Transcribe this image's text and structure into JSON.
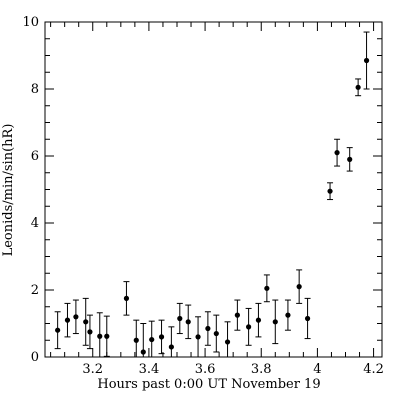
{
  "chart_data": {
    "type": "scatter",
    "title": "",
    "xlabel": "Hours past 0:00 UT November 19",
    "ylabel": "Leonids/min/sin(hR)",
    "xlim": [
      3.03,
      4.23
    ],
    "ylim": [
      0,
      10
    ],
    "grid": false,
    "error_bars": true,
    "x_ticks": [
      3.2,
      3.4,
      3.6,
      3.8,
      4.0,
      4.2
    ],
    "x_tick_labels": [
      "3.2",
      "3.4",
      "3.6",
      "3.8",
      "4",
      "4.2"
    ],
    "y_ticks": [
      0,
      2,
      4,
      6,
      8,
      10
    ],
    "y_tick_labels": [
      "0",
      "2",
      "4",
      "6",
      "8",
      "10"
    ],
    "points": [
      {
        "x": 3.075,
        "y": 0.8,
        "err": 0.55
      },
      {
        "x": 3.11,
        "y": 1.1,
        "err": 0.5
      },
      {
        "x": 3.14,
        "y": 1.2,
        "err": 0.5
      },
      {
        "x": 3.175,
        "y": 1.05,
        "err": 0.7
      },
      {
        "x": 3.19,
        "y": 0.75,
        "err": 0.5
      },
      {
        "x": 3.225,
        "y": 0.62,
        "err": 0.7
      },
      {
        "x": 3.25,
        "y": 0.62,
        "err": 0.6
      },
      {
        "x": 3.32,
        "y": 1.75,
        "err": 0.5
      },
      {
        "x": 3.355,
        "y": 0.5,
        "err": 0.6
      },
      {
        "x": 3.38,
        "y": 0.15,
        "err": 0.85
      },
      {
        "x": 3.41,
        "y": 0.52,
        "err": 0.55
      },
      {
        "x": 3.445,
        "y": 0.6,
        "err": 0.5
      },
      {
        "x": 3.48,
        "y": 0.3,
        "err": 0.6
      },
      {
        "x": 3.51,
        "y": 1.15,
        "err": 0.45
      },
      {
        "x": 3.54,
        "y": 1.05,
        "err": 0.5
      },
      {
        "x": 3.575,
        "y": 0.6,
        "err": 0.6
      },
      {
        "x": 3.61,
        "y": 0.85,
        "err": 0.5
      },
      {
        "x": 3.64,
        "y": 0.7,
        "err": 0.55
      },
      {
        "x": 3.68,
        "y": 0.45,
        "err": 0.6
      },
      {
        "x": 3.715,
        "y": 1.25,
        "err": 0.45
      },
      {
        "x": 3.755,
        "y": 0.9,
        "err": 0.55
      },
      {
        "x": 3.79,
        "y": 1.1,
        "err": 0.5
      },
      {
        "x": 3.82,
        "y": 2.05,
        "err": 0.4
      },
      {
        "x": 3.85,
        "y": 1.05,
        "err": 0.65
      },
      {
        "x": 3.895,
        "y": 1.25,
        "err": 0.45
      },
      {
        "x": 3.935,
        "y": 2.1,
        "err": 0.5
      },
      {
        "x": 3.965,
        "y": 1.15,
        "err": 0.6
      },
      {
        "x": 4.045,
        "y": 4.95,
        "err": 0.25
      },
      {
        "x": 4.07,
        "y": 6.1,
        "err": 0.4
      },
      {
        "x": 4.115,
        "y": 5.9,
        "err": 0.35
      },
      {
        "x": 4.145,
        "y": 8.05,
        "err": 0.25
      },
      {
        "x": 4.175,
        "y": 8.85,
        "err": 0.85
      }
    ]
  }
}
